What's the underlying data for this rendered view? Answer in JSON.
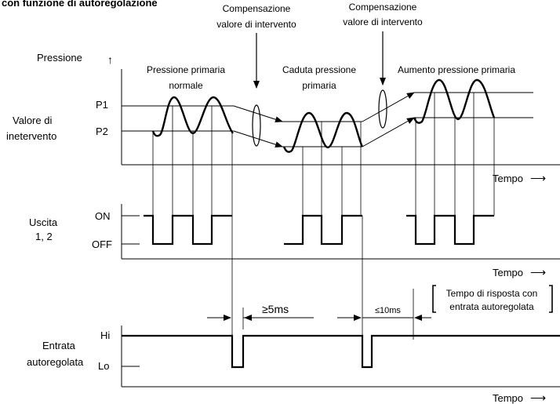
{
  "header": {
    "title": "con funzione di autoregolazione"
  },
  "annotations": {
    "comp_left_line1": "Compensazione",
    "comp_left_line2": "valore di intervento",
    "comp_right_line1": "Compensazione",
    "comp_right_line2": "valore di intervento"
  },
  "pressure_panel": {
    "y_label": "Pressione",
    "threshold_label_line1": "Valore di",
    "threshold_label_line2": "inetervento",
    "p1": "P1",
    "p2": "P2",
    "segment_normal_line1": "Pressione primaria",
    "segment_normal_line2": "normale",
    "segment_drop_line1": "Caduta pressione",
    "segment_drop_line2": "primaria",
    "segment_rise": "Aumento pressione primaria",
    "x_label": "Tempo"
  },
  "output_panel": {
    "label_line1": "Uscita",
    "label_line2": "1, 2",
    "on": "ON",
    "off": "OFF",
    "x_label": "Tempo"
  },
  "input_panel": {
    "label_line1": "Entrata",
    "label_line2": "autoregolata",
    "hi": "Hi",
    "lo": "Lo",
    "x_label": "Tempo",
    "min_pulse": "≥5ms",
    "max_response": "≤10ms",
    "response_note_line1": "Tempo di risposta con",
    "response_note_line2": "entrata autoregolata"
  },
  "arrow_glyph": "⟶",
  "up_arrow_glyph": "↑"
}
